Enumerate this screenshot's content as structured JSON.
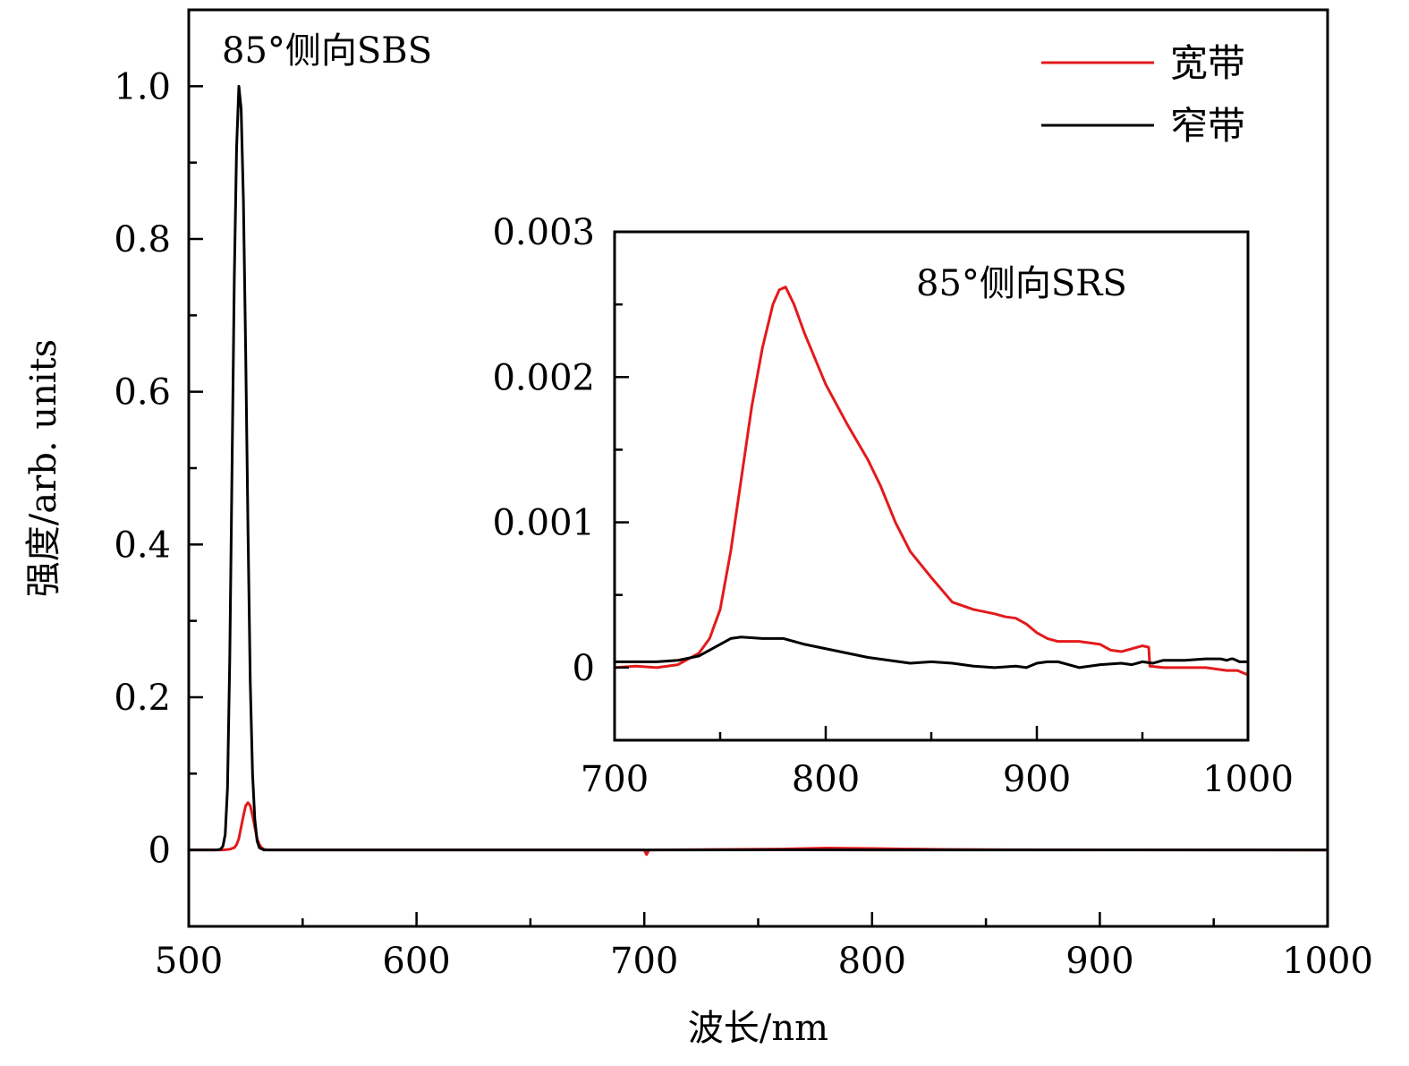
{
  "chart_data": [
    {
      "id": "main",
      "type": "line",
      "xlabel": "波长/nm",
      "ylabel": "强度/arb. units",
      "xlim": [
        500,
        1000
      ],
      "ylim": [
        -0.1,
        1.1
      ],
      "xticks": [
        500,
        600,
        700,
        800,
        900,
        1000
      ],
      "xtick_labels": [
        "500",
        "600",
        "700",
        "800",
        "900",
        "1000"
      ],
      "yticks": [
        0,
        0.2,
        0.4,
        0.6,
        0.8,
        1.0
      ],
      "ytick_labels": [
        "0",
        "0.2",
        "0.4",
        "0.6",
        "0.8",
        "1.0"
      ],
      "annotation": "85°侧向SBS",
      "legend": {
        "position": "top-right",
        "entries": [
          "宽带",
          "窄带"
        ]
      },
      "series": [
        {
          "name": "宽带",
          "color": "#e31a1c",
          "x": [
            500,
            515,
            518,
            520,
            521,
            522,
            523,
            524,
            525,
            526,
            527,
            528,
            529,
            530,
            531,
            532,
            533,
            535,
            540,
            600,
            700,
            701,
            702,
            703,
            760,
            780,
            800,
            830,
            860,
            900,
            950,
            1000
          ],
          "y": [
            0,
            0,
            0.001,
            0.003,
            0.007,
            0.015,
            0.03,
            0.045,
            0.058,
            0.062,
            0.058,
            0.045,
            0.03,
            0.015,
            0.007,
            0.003,
            0.001,
            0,
            0,
            0,
            0,
            -0.006,
            0,
            0,
            0.0012,
            0.0026,
            0.0019,
            0.0008,
            0.00035,
            0.00017,
            3e-05,
            -5e-05
          ]
        },
        {
          "name": "窄带",
          "color": "#000000",
          "x": [
            500,
            512,
            514,
            515,
            516,
            517,
            518,
            519,
            520,
            521,
            522,
            523,
            524,
            525,
            526,
            527,
            528,
            529,
            530,
            531,
            533,
            540,
            700,
            760,
            800,
            900,
            1000
          ],
          "y": [
            0,
            0,
            0.001,
            0.005,
            0.02,
            0.08,
            0.25,
            0.5,
            0.75,
            0.92,
            1.0,
            0.97,
            0.85,
            0.65,
            0.42,
            0.22,
            0.1,
            0.04,
            0.012,
            0.003,
            0,
            0,
            0,
            0.0002,
            5e-05,
            2e-05,
            4e-05
          ]
        }
      ]
    },
    {
      "id": "inset",
      "type": "line",
      "xlim": [
        700,
        1000
      ],
      "ylim": [
        -0.0005,
        0.003
      ],
      "xticks": [
        700,
        800,
        900,
        1000
      ],
      "xtick_labels": [
        "700",
        "800",
        "900",
        "1000"
      ],
      "yticks": [
        0,
        0.001,
        0.002,
        0.003
      ],
      "ytick_labels": [
        "0",
        "0.001",
        "0.002",
        "0.003"
      ],
      "annotation": "85°侧向SRS",
      "series": [
        {
          "name": "宽带",
          "color": "#e31a1c",
          "x": [
            700,
            710,
            720,
            730,
            740,
            745,
            750,
            755,
            760,
            765,
            770,
            775,
            778,
            781,
            785,
            790,
            800,
            810,
            820,
            826,
            833,
            840,
            850,
            860,
            870,
            880,
            885,
            890,
            895,
            900,
            905,
            910,
            920,
            930,
            935,
            940,
            945,
            950,
            953,
            953.5,
            960,
            970,
            980,
            990,
            995,
            1000
          ],
          "y": [
            0,
            1e-05,
            0,
            2e-05,
            0.0001,
            0.0002,
            0.0004,
            0.0008,
            0.0013,
            0.0018,
            0.0022,
            0.0025,
            0.0026,
            0.00262,
            0.0025,
            0.0023,
            0.00195,
            0.00168,
            0.00143,
            0.00125,
            0.001,
            0.0008,
            0.00062,
            0.00045,
            0.0004,
            0.00037,
            0.00035,
            0.00034,
            0.0003,
            0.00024,
            0.0002,
            0.00018,
            0.00018,
            0.00016,
            0.00012,
            0.00011,
            0.00013,
            0.00015,
            0.00014,
            1e-05,
            0,
            0,
            0,
            -2e-05,
            -2e-05,
            -5e-05
          ]
        },
        {
          "name": "窄带",
          "color": "#000000",
          "x": [
            700,
            720,
            730,
            740,
            750,
            755,
            760,
            770,
            780,
            790,
            800,
            810,
            820,
            830,
            840,
            850,
            860,
            870,
            880,
            890,
            895,
            900,
            905,
            910,
            915,
            920,
            930,
            940,
            945,
            950,
            955,
            960,
            970,
            980,
            987,
            990,
            992,
            993,
            996,
            1000
          ],
          "y": [
            4e-05,
            4e-05,
            5e-05,
            8e-05,
            0.00016,
            0.0002,
            0.00021,
            0.0002,
            0.0002,
            0.00016,
            0.00013,
            0.0001,
            7e-05,
            5e-05,
            3e-05,
            4e-05,
            3e-05,
            1e-05,
            0,
            1e-05,
            0,
            3e-05,
            4e-05,
            4e-05,
            2e-05,
            0,
            2e-05,
            3e-05,
            2e-05,
            4e-05,
            3e-05,
            5e-05,
            5e-05,
            6e-05,
            6e-05,
            5e-05,
            6e-05,
            6e-05,
            4e-05,
            4e-05
          ]
        }
      ]
    }
  ]
}
